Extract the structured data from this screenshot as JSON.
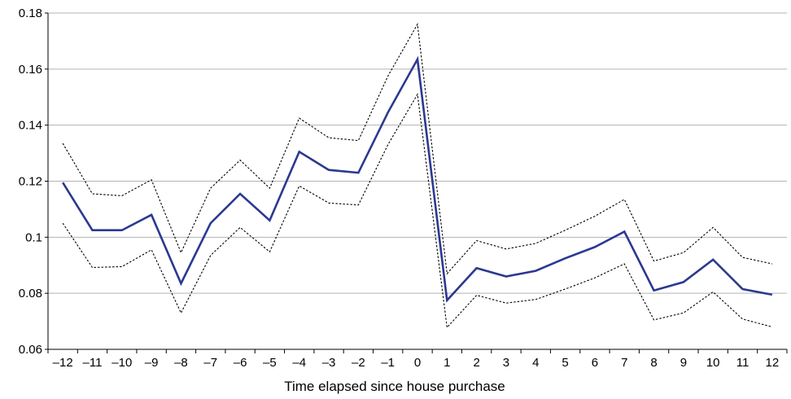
{
  "chart_data": {
    "type": "line",
    "title": "",
    "xlabel": "Time elapsed since house purchase",
    "ylabel": "",
    "x": [
      -12,
      -11,
      -10,
      -9,
      -8,
      -7,
      -6,
      -5,
      -4,
      -3,
      -2,
      -1,
      0,
      1,
      2,
      3,
      4,
      5,
      6,
      7,
      8,
      9,
      10,
      11,
      12
    ],
    "x_tick_labels": [
      "–12",
      "–11",
      "–10",
      "–9",
      "–8",
      "–7",
      "–6",
      "–5",
      "–4",
      "–3",
      "–2",
      "–1",
      "0",
      "1",
      "2",
      "3",
      "4",
      "5",
      "6",
      "7",
      "8",
      "9",
      "10",
      "11",
      "12"
    ],
    "ylim": [
      0.06,
      0.18
    ],
    "y_ticks": [
      0.06,
      0.08,
      0.1,
      0.12,
      0.14,
      0.16,
      0.18
    ],
    "y_tick_labels": [
      "0.06",
      "0.08",
      "0.1",
      "0.12",
      "0.14",
      "0.16",
      "0.18"
    ],
    "grid": "horizontal",
    "legend": "none",
    "series": [
      {
        "role": "estimate",
        "color": "#2b3990",
        "style": "solid",
        "values": [
          0.1195,
          0.1025,
          0.1025,
          0.108,
          0.0835,
          0.105,
          0.1155,
          0.106,
          0.1305,
          0.124,
          0.123,
          0.1445,
          0.1635,
          0.0775,
          0.089,
          0.086,
          0.088,
          0.0925,
          0.0965,
          0.102,
          0.081,
          0.084,
          0.092,
          0.0815,
          0.0795
        ]
      },
      {
        "role": "upper-bound",
        "color": "#000000",
        "style": "dotted",
        "values": [
          0.1335,
          0.1155,
          0.1148,
          0.1205,
          0.0945,
          0.1175,
          0.1275,
          0.1175,
          0.1425,
          0.1355,
          0.1345,
          0.1575,
          0.176,
          0.087,
          0.0988,
          0.0958,
          0.0978,
          0.1025,
          0.1075,
          0.1135,
          0.0915,
          0.0945,
          0.1035,
          0.0928,
          0.0905
        ]
      },
      {
        "role": "lower-bound",
        "color": "#000000",
        "style": "dotted",
        "values": [
          0.105,
          0.0892,
          0.0895,
          0.0955,
          0.073,
          0.0935,
          0.1035,
          0.0948,
          0.1183,
          0.1122,
          0.1115,
          0.133,
          0.151,
          0.0678,
          0.0793,
          0.0765,
          0.0778,
          0.0815,
          0.0855,
          0.0905,
          0.0705,
          0.073,
          0.0805,
          0.0708,
          0.068
        ]
      }
    ]
  }
}
